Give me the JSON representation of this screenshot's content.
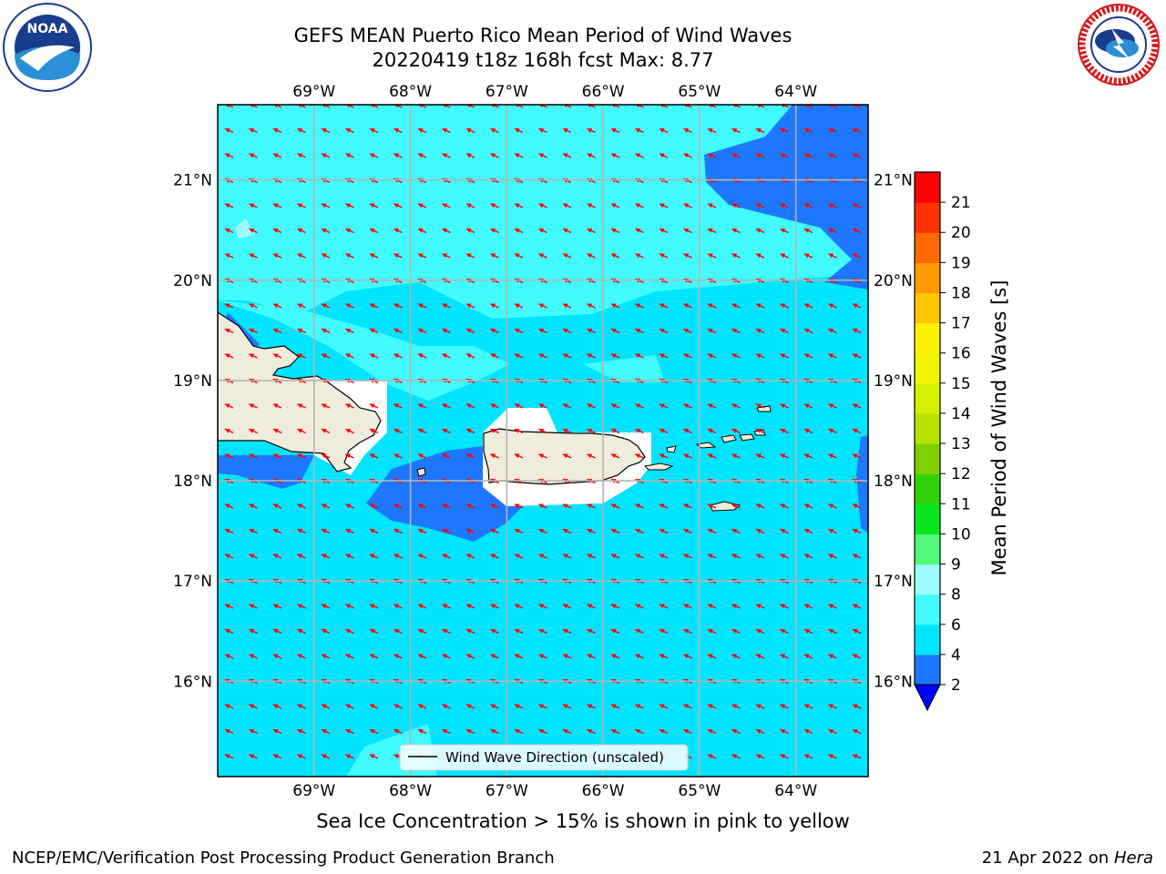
{
  "header": {
    "title_line1": "GEFS MEAN Puerto Rico Mean Period of Wind Waves",
    "title_line2": "20220419 t18z 168h fcst   Max: 8.77"
  },
  "logos": {
    "left": "noaa-logo",
    "left_text": "NOAA",
    "right": "national-weather-service-logo",
    "right_text": "NATIONAL WEATHER SERVICE"
  },
  "map": {
    "lon_ticks": [
      "69°W",
      "68°W",
      "67°W",
      "66°W",
      "65°W",
      "64°W"
    ],
    "lat_ticks": [
      "21°N",
      "20°N",
      "19°N",
      "18°N",
      "17°N",
      "16°N"
    ],
    "lon_range": [
      -70.0,
      -63.25
    ],
    "lat_range": [
      15.05,
      21.75
    ],
    "legend": "Wind Wave Direction (unscaled)",
    "arrow_color": "#ff0000",
    "land_color": "#efecdc",
    "grid": true
  },
  "colorbar": {
    "label": "Mean Period of Wind Waves [s]",
    "ticks": [
      "2",
      "4",
      "6",
      "8",
      "9",
      "10",
      "11",
      "12",
      "13",
      "14",
      "15",
      "16",
      "17",
      "18",
      "19",
      "20",
      "21"
    ],
    "colors": [
      "#1e78ff",
      "#00e5ff",
      "#41fbff",
      "#9dfcfd",
      "#52fa78",
      "#0ae61e",
      "#2ed30a",
      "#7fd000",
      "#b8e100",
      "#d7ef00",
      "#f0f600",
      "#fff200",
      "#ffc600",
      "#ff9800",
      "#ff6a00",
      "#ff3300",
      "#ff0000"
    ],
    "under_color": "#0000ff"
  },
  "footer": {
    "note": "Sea Ice Concentration > 15% is shown in pink to yellow",
    "credit": "NCEP/EMC/Verification Post Processing Product Generation Branch",
    "date": "21 Apr 2022 on",
    "machine": "Hera"
  }
}
